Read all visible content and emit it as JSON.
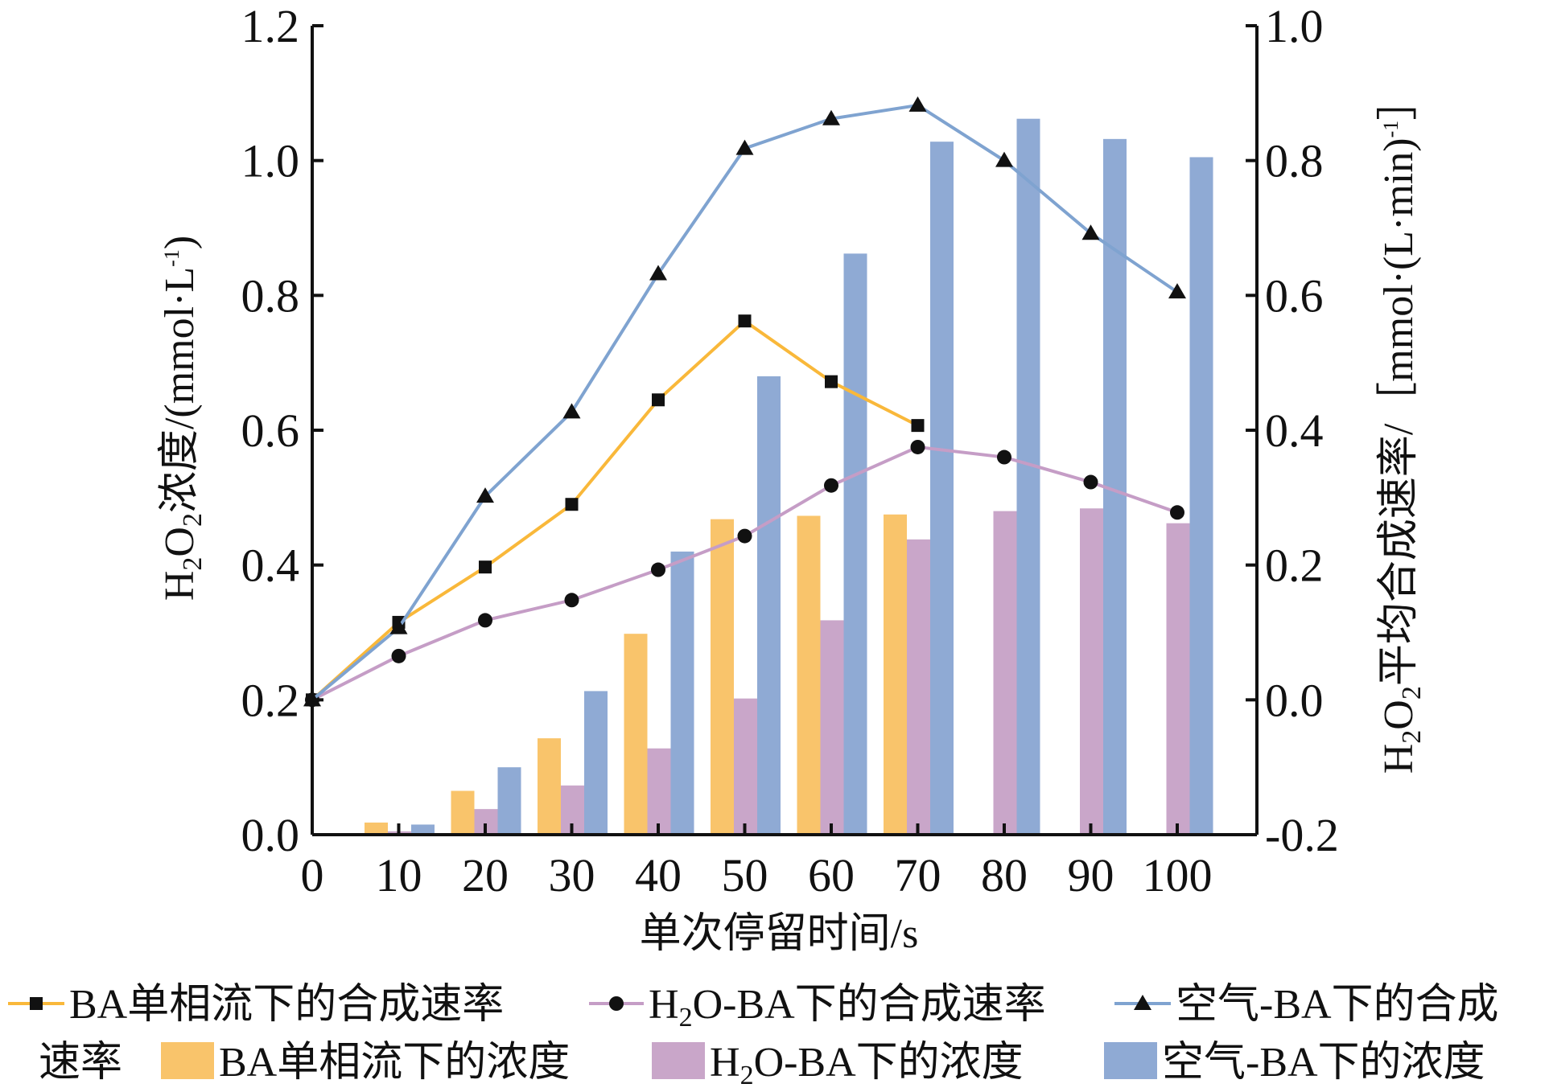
{
  "chart_data": {
    "type": "bar+line",
    "x": [
      0,
      10,
      20,
      30,
      40,
      50,
      60,
      70,
      80,
      90,
      100
    ],
    "xlabel": "单次停留时间/s",
    "ylabel_left": {
      "main": "H",
      "sub1": "2",
      "mid": "O",
      "sub2": "2",
      "rest": "浓度/(mmol·L",
      "sup": "-1",
      "end": ")"
    },
    "ylabel_right": {
      "main": "H",
      "sub1": "2",
      "mid": "O",
      "sub2": "2",
      "rest": "平均合成速率/［mmol·(L·min)",
      "sup": "-1",
      "end": "］"
    },
    "ylim_left": [
      0,
      1.2
    ],
    "ylim_right": [
      -0.2,
      1.0
    ],
    "yticks_left": [
      "0.0",
      "0.2",
      "0.4",
      "0.6",
      "0.8",
      "1.0",
      "1.2"
    ],
    "yticks_right": [
      "-0.2",
      "0.0",
      "0.2",
      "0.4",
      "0.6",
      "0.8",
      "1.0"
    ],
    "xticks": [
      "0",
      "10",
      "20",
      "30",
      "40",
      "50",
      "60",
      "70",
      "80",
      "90",
      "100"
    ],
    "bar_series": [
      {
        "name": "BA单相流下的浓度",
        "color": "#F9C46B",
        "values": [
          null,
          0.018,
          0.065,
          0.143,
          0.298,
          0.468,
          0.473,
          0.475,
          null,
          null,
          null
        ]
      },
      {
        "name": "H2O-BA下的浓度",
        "color": "#C9A6C9",
        "values": [
          null,
          0.005,
          0.038,
          0.073,
          0.128,
          0.202,
          0.318,
          0.438,
          0.48,
          0.484,
          0.462
        ]
      },
      {
        "name": "空气-BA下的浓度",
        "color": "#8FAAD4",
        "values": [
          null,
          0.015,
          0.1,
          0.213,
          0.42,
          0.68,
          0.862,
          1.028,
          1.062,
          1.032,
          1.005
        ]
      }
    ],
    "line_series": [
      {
        "name": "BA单相流下的合成速率",
        "color": "#F9B83A",
        "marker": "square",
        "values": [
          0.0,
          0.115,
          0.197,
          0.29,
          0.445,
          0.562,
          0.472,
          0.407,
          null,
          null,
          null
        ]
      },
      {
        "name": "H2O-BA下的合成速率",
        "color": "#C59DC6",
        "marker": "circle",
        "values": [
          0.0,
          0.065,
          0.118,
          0.148,
          0.193,
          0.243,
          0.318,
          0.375,
          0.36,
          0.323,
          0.278
        ]
      },
      {
        "name": "空气-BA下的合成速率",
        "color": "#7FA3D0",
        "marker": "triangle",
        "values": [
          0.0,
          0.107,
          0.302,
          0.427,
          0.632,
          0.818,
          0.862,
          0.882,
          0.8,
          0.692,
          0.605
        ]
      }
    ]
  },
  "legend": {
    "row1": [
      {
        "label": "BA单相流下的合成速率",
        "kind": "line",
        "marker": "square",
        "color": "#F9B83A"
      },
      {
        "label_main": "H",
        "label_sub": "2",
        "label_rest": "O-BA下的合成速率",
        "kind": "line",
        "marker": "circle",
        "color": "#C59DC6"
      },
      {
        "label": "空气-BA下的合成",
        "kind": "line",
        "marker": "triangle",
        "color": "#7FA3D0"
      }
    ],
    "row2_prefix": "速率",
    "row2": [
      {
        "label": "BA单相流下的浓度",
        "kind": "bar",
        "color": "#F9C46B"
      },
      {
        "label_main": "H",
        "label_sub": "2",
        "label_rest": "O-BA下的浓度",
        "kind": "bar",
        "color": "#C9A6C9"
      },
      {
        "label": "空气-BA下的浓度",
        "kind": "bar",
        "color": "#8FAAD4"
      }
    ]
  }
}
